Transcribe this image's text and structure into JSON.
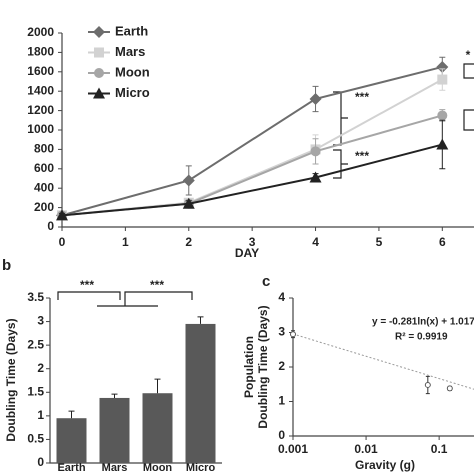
{
  "chart_data": [
    {
      "type": "line",
      "xlabel": "DAY",
      "x": [
        0,
        2,
        4,
        6
      ],
      "series": [
        {
          "name": "Earth",
          "color": "#6d6d6d",
          "marker": "diamond",
          "values": [
            120,
            480,
            1320,
            1650
          ],
          "errors": [
            20,
            150,
            130,
            100
          ]
        },
        {
          "name": "Mars",
          "color": "#d2d2d2",
          "marker": "square",
          "values": [
            120,
            250,
            800,
            1520
          ],
          "errors": [
            20,
            40,
            150,
            110
          ]
        },
        {
          "name": "Moon",
          "color": "#a6a6a6",
          "marker": "circle",
          "values": [
            120,
            240,
            780,
            1150
          ],
          "errors": [
            20,
            40,
            130,
            60
          ]
        },
        {
          "name": "Micro",
          "color": "#222222",
          "marker": "triangle",
          "values": [
            120,
            240,
            510,
            850
          ],
          "errors": [
            20,
            30,
            40,
            250
          ]
        }
      ],
      "xlim": [
        0,
        6.5
      ],
      "xticks": [
        0,
        1,
        2,
        3,
        4,
        5,
        6
      ],
      "ylim": [
        0,
        2000
      ],
      "yticks": [
        0,
        200,
        400,
        600,
        800,
        1000,
        1200,
        1400,
        1600,
        1800,
        2000
      ],
      "annotations": [
        "***",
        "***",
        "*"
      ]
    },
    {
      "type": "bar",
      "panel": "b",
      "ylabel": "Doubling Time (Days)",
      "categories": [
        "Earth",
        "Mars",
        "Moon",
        "Micro"
      ],
      "values": [
        0.95,
        1.38,
        1.48,
        2.95
      ],
      "errors": [
        0.15,
        0.08,
        0.3,
        0.15
      ],
      "color": "#595959",
      "ylim": [
        0,
        3.5
      ],
      "yticks": [
        0,
        0.5,
        1,
        1.5,
        2,
        2.5,
        3,
        3.5
      ],
      "annotations": [
        "***",
        "***"
      ]
    },
    {
      "type": "scatter",
      "panel": "c",
      "xlabel": "Gravity (g)",
      "ylabel": [
        "Population",
        "Doubling Time (Days)"
      ],
      "log_x": true,
      "x": [
        0.001,
        0.07,
        0.14
      ],
      "values": [
        2.95,
        1.48,
        1.38
      ],
      "errors": [
        0.1,
        0.25,
        0.06
      ],
      "color": "#555555",
      "trendline": {
        "x": [
          0.001,
          0.3
        ],
        "values": [
          2.958,
          1.356
        ],
        "color": "#999999"
      },
      "xlim": [
        0.001,
        0.3
      ],
      "xticks": [
        {
          "value": 0.001,
          "label": "0.001"
        },
        {
          "value": 0.01,
          "label": "0.01"
        },
        {
          "value": 0.1,
          "label": "0.1"
        }
      ],
      "ylim": [
        0,
        4
      ],
      "yticks": [
        0,
        1,
        2,
        3,
        4
      ],
      "annotations": [
        "y = -0.281ln(x) + 1.0173",
        "R² = 0.9919"
      ]
    }
  ]
}
